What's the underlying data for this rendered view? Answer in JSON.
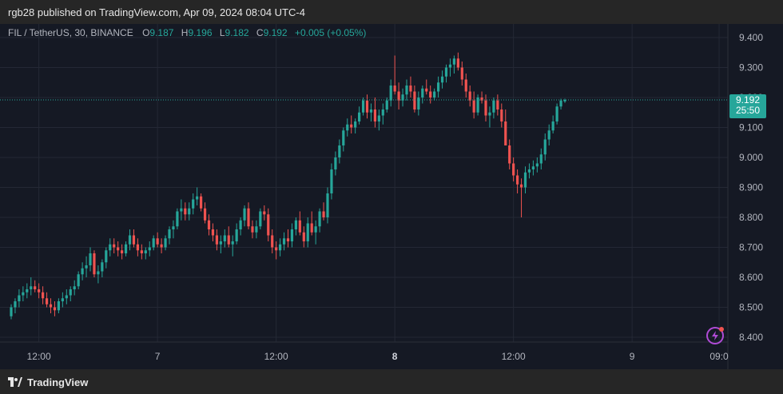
{
  "header": {
    "publisher": "rgb28 published on TradingView.com, Apr 09, 2024 08:04 UTC-4"
  },
  "footer": {
    "brand": "TradingView"
  },
  "legend": {
    "symbol": "FIL / TetherUS, 30, BINANCE",
    "o_label": "O",
    "o_value": "9.187",
    "h_label": "H",
    "h_value": "9.196",
    "l_label": "L",
    "l_value": "9.182",
    "c_label": "C",
    "c_value": "9.192",
    "change": "+0.005 (+0.05%)"
  },
  "price_badge": {
    "price": "9.192",
    "countdown": "25:50"
  },
  "colors": {
    "up": "#26a69a",
    "down": "#ef5350",
    "bg": "#151924",
    "grid": "#242835",
    "text": "#b2b5be",
    "accent_icon": "#b04bd6"
  },
  "icons": {
    "bottom_right": "lightning-icon",
    "logo": "tradingview-logo-icon"
  },
  "chart_data": {
    "type": "candlestick",
    "y_axis": {
      "min": 8.4,
      "max": 9.4,
      "ticks": [
        "8.400",
        "8.500",
        "8.600",
        "8.700",
        "8.800",
        "8.900",
        "9.000",
        "9.100",
        "9.200",
        "9.300",
        "9.400"
      ]
    },
    "x_axis": {
      "ticks": [
        {
          "label": "12:00",
          "index": 7,
          "bold": false
        },
        {
          "label": "7",
          "index": 37,
          "bold": false
        },
        {
          "label": "12:00",
          "index": 67,
          "bold": false
        },
        {
          "label": "8",
          "index": 97,
          "bold": true
        },
        {
          "label": "12:00",
          "index": 127,
          "bold": false
        },
        {
          "label": "9",
          "index": 157,
          "bold": false
        },
        {
          "label": "09:0",
          "index": 179,
          "bold": false
        }
      ]
    },
    "last_price": 9.192,
    "candles_ohlc": [
      [
        8.47,
        8.51,
        8.46,
        8.5
      ],
      [
        8.5,
        8.53,
        8.48,
        8.52
      ],
      [
        8.52,
        8.56,
        8.5,
        8.54
      ],
      [
        8.54,
        8.57,
        8.52,
        8.55
      ],
      [
        8.55,
        8.58,
        8.53,
        8.56
      ],
      [
        8.56,
        8.6,
        8.54,
        8.57
      ],
      [
        8.57,
        8.59,
        8.55,
        8.56
      ],
      [
        8.56,
        8.58,
        8.53,
        8.55
      ],
      [
        8.55,
        8.57,
        8.51,
        8.53
      ],
      [
        8.53,
        8.55,
        8.5,
        8.51
      ],
      [
        8.51,
        8.53,
        8.48,
        8.5
      ],
      [
        8.5,
        8.52,
        8.47,
        8.49
      ],
      [
        8.49,
        8.53,
        8.48,
        8.52
      ],
      [
        8.52,
        8.55,
        8.5,
        8.53
      ],
      [
        8.53,
        8.56,
        8.51,
        8.54
      ],
      [
        8.54,
        8.57,
        8.52,
        8.56
      ],
      [
        8.56,
        8.59,
        8.54,
        8.57
      ],
      [
        8.57,
        8.62,
        8.56,
        8.61
      ],
      [
        8.61,
        8.65,
        8.59,
        8.63
      ],
      [
        8.63,
        8.67,
        8.6,
        8.64
      ],
      [
        8.64,
        8.7,
        8.62,
        8.68
      ],
      [
        8.68,
        8.69,
        8.6,
        8.61
      ],
      [
        8.61,
        8.64,
        8.58,
        8.62
      ],
      [
        8.62,
        8.66,
        8.6,
        8.65
      ],
      [
        8.65,
        8.7,
        8.63,
        8.69
      ],
      [
        8.69,
        8.73,
        8.67,
        8.71
      ],
      [
        8.71,
        8.73,
        8.68,
        8.7
      ],
      [
        8.7,
        8.72,
        8.67,
        8.69
      ],
      [
        8.69,
        8.71,
        8.66,
        8.68
      ],
      [
        8.68,
        8.72,
        8.67,
        8.71
      ],
      [
        8.71,
        8.76,
        8.69,
        8.74
      ],
      [
        8.74,
        8.76,
        8.7,
        8.71
      ],
      [
        8.71,
        8.73,
        8.67,
        8.69
      ],
      [
        8.69,
        8.71,
        8.66,
        8.68
      ],
      [
        8.68,
        8.7,
        8.66,
        8.69
      ],
      [
        8.69,
        8.72,
        8.67,
        8.7
      ],
      [
        8.7,
        8.74,
        8.69,
        8.73
      ],
      [
        8.73,
        8.75,
        8.7,
        8.71
      ],
      [
        8.71,
        8.73,
        8.68,
        8.7
      ],
      [
        8.7,
        8.74,
        8.69,
        8.73
      ],
      [
        8.73,
        8.77,
        8.71,
        8.76
      ],
      [
        8.76,
        8.79,
        8.73,
        8.77
      ],
      [
        8.77,
        8.83,
        8.76,
        8.82
      ],
      [
        8.82,
        8.86,
        8.79,
        8.83
      ],
      [
        8.83,
        8.85,
        8.79,
        8.81
      ],
      [
        8.81,
        8.85,
        8.79,
        8.83
      ],
      [
        8.83,
        8.88,
        8.81,
        8.86
      ],
      [
        8.86,
        8.9,
        8.84,
        8.87
      ],
      [
        8.87,
        8.88,
        8.82,
        8.83
      ],
      [
        8.83,
        8.85,
        8.78,
        8.79
      ],
      [
        8.79,
        8.81,
        8.74,
        8.76
      ],
      [
        8.76,
        8.78,
        8.72,
        8.74
      ],
      [
        8.74,
        8.76,
        8.69,
        8.71
      ],
      [
        8.71,
        8.74,
        8.68,
        8.72
      ],
      [
        8.72,
        8.76,
        8.7,
        8.74
      ],
      [
        8.74,
        8.77,
        8.7,
        8.71
      ],
      [
        8.71,
        8.74,
        8.67,
        8.72
      ],
      [
        8.72,
        8.78,
        8.71,
        8.76
      ],
      [
        8.76,
        8.8,
        8.74,
        8.79
      ],
      [
        8.79,
        8.84,
        8.77,
        8.83
      ],
      [
        8.83,
        8.85,
        8.76,
        8.77
      ],
      [
        8.77,
        8.79,
        8.73,
        8.75
      ],
      [
        8.75,
        8.79,
        8.73,
        8.77
      ],
      [
        8.77,
        8.83,
        8.76,
        8.82
      ],
      [
        8.82,
        8.84,
        8.79,
        8.81
      ],
      [
        8.81,
        8.83,
        8.72,
        8.74
      ],
      [
        8.74,
        8.76,
        8.68,
        8.7
      ],
      [
        8.7,
        8.72,
        8.66,
        8.69
      ],
      [
        8.69,
        8.73,
        8.67,
        8.71
      ],
      [
        8.71,
        8.75,
        8.69,
        8.73
      ],
      [
        8.73,
        8.76,
        8.7,
        8.72
      ],
      [
        8.72,
        8.78,
        8.7,
        8.76
      ],
      [
        8.76,
        8.8,
        8.74,
        8.79
      ],
      [
        8.79,
        8.82,
        8.74,
        8.75
      ],
      [
        8.75,
        8.77,
        8.7,
        8.72
      ],
      [
        8.72,
        8.8,
        8.7,
        8.78
      ],
      [
        8.78,
        8.82,
        8.74,
        8.75
      ],
      [
        8.75,
        8.79,
        8.71,
        8.77
      ],
      [
        8.77,
        8.83,
        8.75,
        8.82
      ],
      [
        8.82,
        8.85,
        8.79,
        8.8
      ],
      [
        8.8,
        8.9,
        8.78,
        8.88
      ],
      [
        8.88,
        8.98,
        8.86,
        8.96
      ],
      [
        8.96,
        9.02,
        8.94,
        9.0
      ],
      [
        9.0,
        9.06,
        8.98,
        9.04
      ],
      [
        9.04,
        9.1,
        9.02,
        9.09
      ],
      [
        9.09,
        9.13,
        9.07,
        9.11
      ],
      [
        9.11,
        9.14,
        9.08,
        9.1
      ],
      [
        9.1,
        9.13,
        9.08,
        9.12
      ],
      [
        9.12,
        9.17,
        9.11,
        9.15
      ],
      [
        9.15,
        9.2,
        9.14,
        9.19
      ],
      [
        9.19,
        9.21,
        9.13,
        9.15
      ],
      [
        9.15,
        9.18,
        9.12,
        9.16
      ],
      [
        9.16,
        9.2,
        9.1,
        9.12
      ],
      [
        9.12,
        9.16,
        9.09,
        9.14
      ],
      [
        9.14,
        9.18,
        9.11,
        9.16
      ],
      [
        9.16,
        9.2,
        9.15,
        9.19
      ],
      [
        9.19,
        9.26,
        9.17,
        9.24
      ],
      [
        9.24,
        9.34,
        9.21,
        9.22
      ],
      [
        9.22,
        9.25,
        9.16,
        9.19
      ],
      [
        9.19,
        9.23,
        9.17,
        9.21
      ],
      [
        9.21,
        9.26,
        9.19,
        9.24
      ],
      [
        9.24,
        9.27,
        9.2,
        9.22
      ],
      [
        9.22,
        9.24,
        9.15,
        9.16
      ],
      [
        9.16,
        9.22,
        9.14,
        9.2
      ],
      [
        9.2,
        9.24,
        9.18,
        9.23
      ],
      [
        9.23,
        9.26,
        9.21,
        9.22
      ],
      [
        9.22,
        9.24,
        9.18,
        9.2
      ],
      [
        9.2,
        9.23,
        9.19,
        9.22
      ],
      [
        9.22,
        9.27,
        9.2,
        9.25
      ],
      [
        9.25,
        9.29,
        9.23,
        9.27
      ],
      [
        9.27,
        9.31,
        9.25,
        9.3
      ],
      [
        9.3,
        9.33,
        9.27,
        9.31
      ],
      [
        9.31,
        9.34,
        9.28,
        9.33
      ],
      [
        9.33,
        9.35,
        9.29,
        9.3
      ],
      [
        9.3,
        9.32,
        9.24,
        9.26
      ],
      [
        9.26,
        9.28,
        9.2,
        9.22
      ],
      [
        9.22,
        9.24,
        9.17,
        9.19
      ],
      [
        9.19,
        9.22,
        9.13,
        9.15
      ],
      [
        9.15,
        9.21,
        9.14,
        9.2
      ],
      [
        9.2,
        9.22,
        9.18,
        9.19
      ],
      [
        9.19,
        9.21,
        9.12,
        9.14
      ],
      [
        9.14,
        9.17,
        9.1,
        9.15
      ],
      [
        9.15,
        9.2,
        9.13,
        9.19
      ],
      [
        9.19,
        9.21,
        9.14,
        9.16
      ],
      [
        9.16,
        9.18,
        9.1,
        9.12
      ],
      [
        9.12,
        9.16,
        9.08,
        9.04
      ],
      [
        9.04,
        9.06,
        8.96,
        8.98
      ],
      [
        8.98,
        9.0,
        8.92,
        8.94
      ],
      [
        8.94,
        8.96,
        8.88,
        8.91
      ],
      [
        8.91,
        8.93,
        8.8,
        8.9
      ],
      [
        8.9,
        8.97,
        8.88,
        8.95
      ],
      [
        8.95,
        8.98,
        8.93,
        8.96
      ],
      [
        8.96,
        8.99,
        8.94,
        8.97
      ],
      [
        8.97,
        9.0,
        8.95,
        8.98
      ],
      [
        8.98,
        9.03,
        8.96,
        9.01
      ],
      [
        9.01,
        9.08,
        8.99,
        9.06
      ],
      [
        9.06,
        9.11,
        9.04,
        9.09
      ],
      [
        9.09,
        9.14,
        9.08,
        9.12
      ],
      [
        9.12,
        9.18,
        9.11,
        9.17
      ],
      [
        9.17,
        9.196,
        9.16,
        9.19
      ],
      [
        9.187,
        9.196,
        9.182,
        9.192
      ]
    ]
  }
}
